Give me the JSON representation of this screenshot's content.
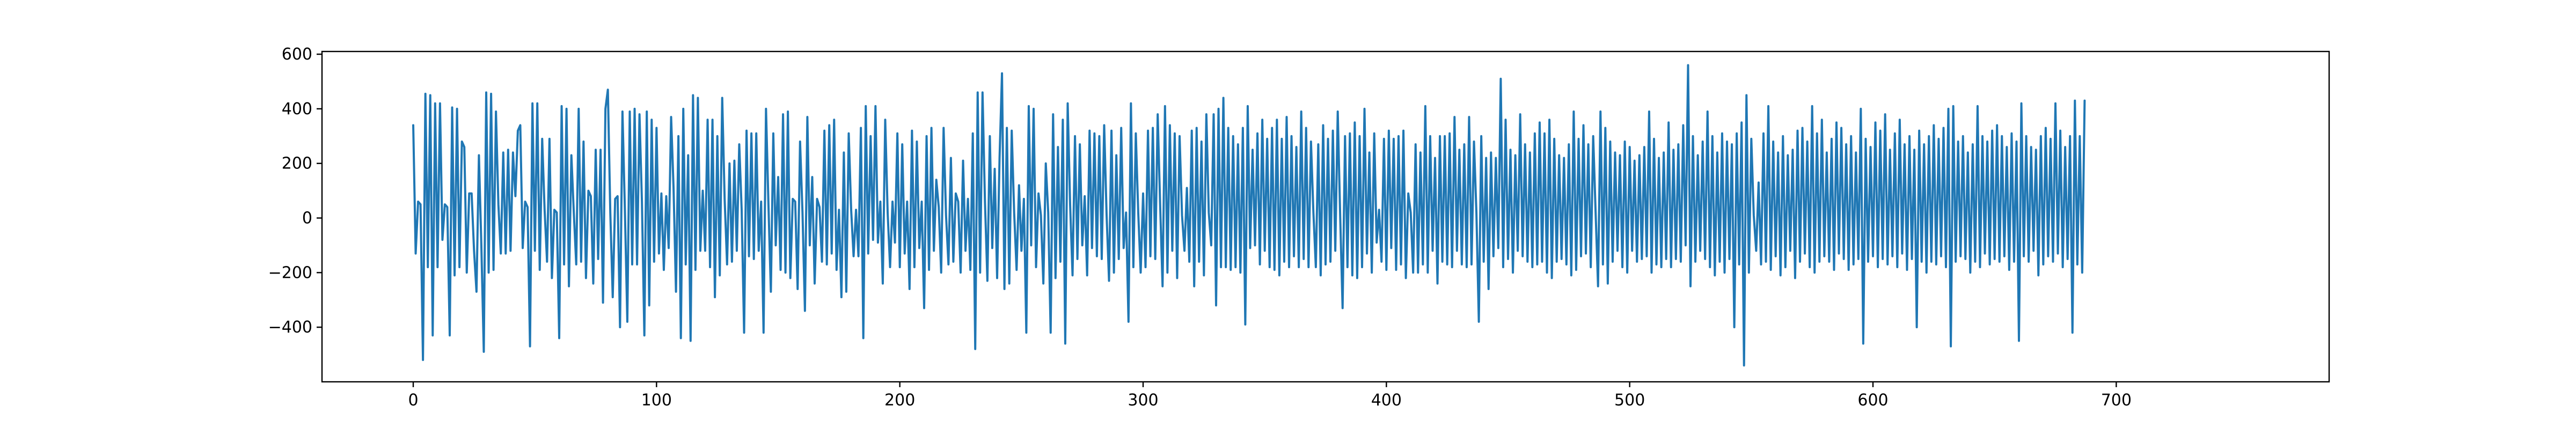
{
  "chart_data": {
    "type": "line",
    "title": "",
    "xlabel": "",
    "ylabel": "",
    "xlim": [
      -37.5,
      787.5
    ],
    "ylim": [
      -600,
      610
    ],
    "x_ticks": [
      0,
      100,
      200,
      300,
      400,
      500,
      600,
      700
    ],
    "y_ticks": [
      -400,
      -200,
      0,
      200,
      400,
      600
    ],
    "grid": false,
    "legend": "none",
    "colors": {
      "series": "#1f77b4",
      "axes": "#000000",
      "background": "#ffffff"
    },
    "series": [
      {
        "x_start": 0,
        "x_step": 1,
        "values": [
          340,
          -130,
          60,
          50,
          -520,
          455,
          -180,
          450,
          -430,
          420,
          -180,
          420,
          -80,
          50,
          40,
          -430,
          405,
          -210,
          400,
          -180,
          280,
          260,
          -200,
          90,
          90,
          -120,
          -270,
          230,
          -100,
          -490,
          460,
          -200,
          455,
          -190,
          390,
          50,
          -130,
          240,
          -130,
          250,
          -120,
          240,
          80,
          320,
          340,
          -110,
          60,
          40,
          -470,
          420,
          -120,
          420,
          -190,
          290,
          30,
          -160,
          290,
          -220,
          30,
          20,
          -440,
          410,
          -170,
          400,
          -250,
          230,
          20,
          -170,
          400,
          -160,
          280,
          -220,
          100,
          80,
          -240,
          250,
          -150,
          250,
          -310,
          400,
          470,
          20,
          -290,
          70,
          80,
          -400,
          390,
          30,
          -380,
          390,
          -170,
          400,
          -170,
          380,
          60,
          -430,
          390,
          -320,
          360,
          -160,
          330,
          -130,
          90,
          -190,
          80,
          -110,
          370,
          110,
          -270,
          300,
          -440,
          400,
          -170,
          230,
          -450,
          450,
          -190,
          440,
          -120,
          100,
          -120,
          360,
          -180,
          360,
          -290,
          300,
          -210,
          440,
          70,
          -170,
          200,
          -160,
          210,
          -120,
          270,
          30,
          -420,
          320,
          -140,
          310,
          -150,
          310,
          -120,
          60,
          -420,
          400,
          50,
          -270,
          310,
          -100,
          150,
          -190,
          380,
          -200,
          390,
          -220,
          70,
          60,
          -260,
          280,
          20,
          -340,
          370,
          -100,
          150,
          -240,
          70,
          40,
          -160,
          320,
          -170,
          340,
          -130,
          360,
          -190,
          30,
          -290,
          240,
          -270,
          310,
          30,
          -140,
          30,
          -140,
          330,
          -440,
          410,
          -130,
          300,
          -80,
          410,
          -90,
          60,
          -240,
          360,
          20,
          -180,
          60,
          -90,
          310,
          -180,
          270,
          -130,
          60,
          -260,
          320,
          -180,
          280,
          -110,
          60,
          -330,
          300,
          -190,
          330,
          -120,
          140,
          40,
          -200,
          330,
          10,
          -170,
          220,
          -160,
          90,
          60,
          -200,
          210,
          -120,
          70,
          -190,
          310,
          -480,
          460,
          -200,
          460,
          60,
          -230,
          300,
          -110,
          180,
          -220,
          220,
          530,
          -260,
          330,
          -240,
          320,
          20,
          -190,
          120,
          -120,
          70,
          -420,
          410,
          -100,
          400,
          -180,
          90,
          10,
          -240,
          200,
          20,
          -420,
          380,
          -220,
          260,
          -160,
          360,
          -460,
          420,
          50,
          -210,
          300,
          -150,
          270,
          -100,
          80,
          -210,
          320,
          -110,
          310,
          -140,
          300,
          -150,
          340,
          10,
          -230,
          320,
          -200,
          230,
          -150,
          330,
          -110,
          20,
          -380,
          420,
          -180,
          310,
          20,
          -200,
          90,
          -180,
          320,
          -140,
          330,
          -150,
          380,
          50,
          -250,
          410,
          -200,
          340,
          -120,
          310,
          -220,
          300,
          10,
          -120,
          110,
          -160,
          320,
          -250,
          330,
          -160,
          280,
          -210,
          380,
          20,
          -100,
          380,
          -320,
          400,
          -180,
          440,
          -180,
          330,
          -190,
          300,
          -180,
          270,
          -200,
          330,
          -390,
          410,
          -110,
          250,
          -100,
          310,
          -170,
          360,
          -120,
          290,
          -180,
          330,
          -190,
          360,
          -210,
          290,
          -160,
          370,
          -180,
          300,
          -140,
          260,
          -180,
          390,
          -150,
          330,
          -180,
          280,
          20,
          -180,
          270,
          -210,
          340,
          -170,
          290,
          -160,
          320,
          -120,
          390,
          10,
          -330,
          300,
          -180,
          310,
          -210,
          350,
          -220,
          300,
          -180,
          400,
          -130,
          240,
          -200,
          310,
          -90,
          30,
          -160,
          290,
          -190,
          320,
          -110,
          290,
          -190,
          300,
          -170,
          320,
          -220,
          90,
          20,
          -200,
          270,
          -200,
          240,
          -170,
          410,
          -200,
          300,
          -120,
          220,
          -240,
          300,
          -160,
          300,
          -170,
          310,
          -180,
          370,
          -120,
          250,
          -170,
          270,
          -180,
          370,
          -170,
          280,
          20,
          -380,
          300,
          -160,
          220,
          -260,
          240,
          -140,
          220,
          -110,
          510,
          -180,
          360,
          -150,
          250,
          -200,
          230,
          -120,
          380,
          -140,
          270,
          -160,
          240,
          -180,
          310,
          -170,
          350,
          -160,
          310,
          -200,
          360,
          -220,
          290,
          -160,
          230,
          -150,
          220,
          -170,
          270,
          -210,
          390,
          -190,
          290,
          -140,
          340,
          -130,
          270,
          -180,
          300,
          20,
          -250,
          390,
          -170,
          330,
          -240,
          280,
          -160,
          240,
          -120,
          230,
          -180,
          280,
          -200,
          260,
          -120,
          210,
          -160,
          230,
          -150,
          260,
          -140,
          390,
          -200,
          290,
          -170,
          220,
          -180,
          240,
          -150,
          350,
          -180,
          250,
          -150,
          270,
          -160,
          340,
          -100,
          560,
          -250,
          300,
          -160,
          230,
          -120,
          280,
          -150,
          390,
          -180,
          300,
          -210,
          240,
          -160,
          310,
          -200,
          280,
          -150,
          270,
          -400,
          310,
          -170,
          350,
          -540,
          450,
          -200,
          290,
          10,
          -120,
          130,
          -170,
          310,
          -160,
          410,
          -190,
          280,
          -140,
          240,
          -210,
          300,
          -180,
          230,
          -120,
          250,
          -220,
          320,
          -160,
          330,
          -130,
          280,
          -180,
          410,
          -200,
          310,
          -160,
          360,
          -140,
          240,
          -160,
          290,
          -190,
          350,
          -130,
          330,
          -150,
          270,
          -190,
          300,
          -170,
          240,
          -150,
          400,
          -460,
          290,
          -160,
          260,
          -140,
          350,
          -180,
          320,
          -150,
          380,
          -170,
          250,
          -140,
          310,
          -180,
          360,
          -130,
          270,
          -190,
          300,
          -150,
          250,
          -400,
          320,
          -160,
          270,
          -200,
          300,
          -160,
          340,
          -170,
          290,
          -140,
          330,
          -180,
          400,
          -470,
          410,
          -160,
          280,
          -140,
          300,
          -150,
          240,
          -200,
          270,
          -160,
          410,
          -180,
          300,
          -130,
          280,
          -170,
          320,
          -150,
          340,
          -160,
          300,
          -140,
          260,
          -190,
          310,
          -160,
          280,
          -450,
          420,
          -140,
          300,
          -160,
          260,
          -120,
          250,
          -210,
          300,
          -170,
          330,
          -140,
          290,
          -160,
          420,
          -130,
          320,
          -180,
          260,
          -150,
          300,
          -420,
          430,
          -170,
          300,
          -200,
          430
        ]
      }
    ]
  }
}
